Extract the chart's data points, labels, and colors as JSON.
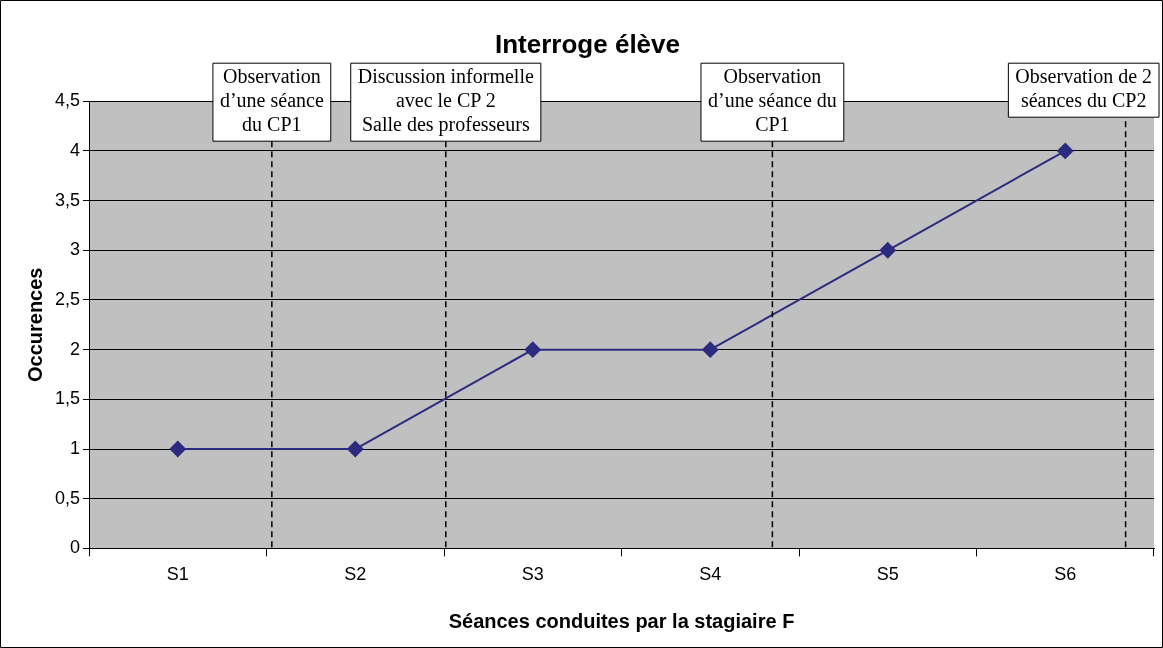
{
  "chart_data": {
    "type": "line",
    "title": "Interroge élève",
    "xlabel": "Séances conduites par la stagiaire F",
    "ylabel": "Occurences",
    "categories": [
      "S1",
      "S2",
      "S3",
      "S4",
      "S5",
      "S6"
    ],
    "series": [
      {
        "color": "#2b2b80",
        "values": [
          1,
          1,
          2,
          2,
          3,
          4
        ]
      }
    ],
    "ylim": [
      0,
      4.5
    ],
    "yticks": [
      0,
      {
        "value": 0.5,
        "label": "0,5"
      },
      1,
      {
        "value": 1.5,
        "label": "1,5"
      },
      2,
      {
        "value": 2.5,
        "label": "2,5"
      },
      3,
      {
        "value": 3.5,
        "label": "3,5"
      },
      4,
      {
        "value": 4.5,
        "label": "4,5"
      }
    ],
    "annotations": [
      "Observation\nd’une séance\ndu CP1",
      "Discussion informelle\navec le CP 2\nSalle des professeurs",
      "Observation\nd’une séance du\nCP1",
      "Observation de 2\nséances du CP2"
    ],
    "grid": "y",
    "legend": false,
    "marker": "diamond",
    "line_style": "solid"
  }
}
